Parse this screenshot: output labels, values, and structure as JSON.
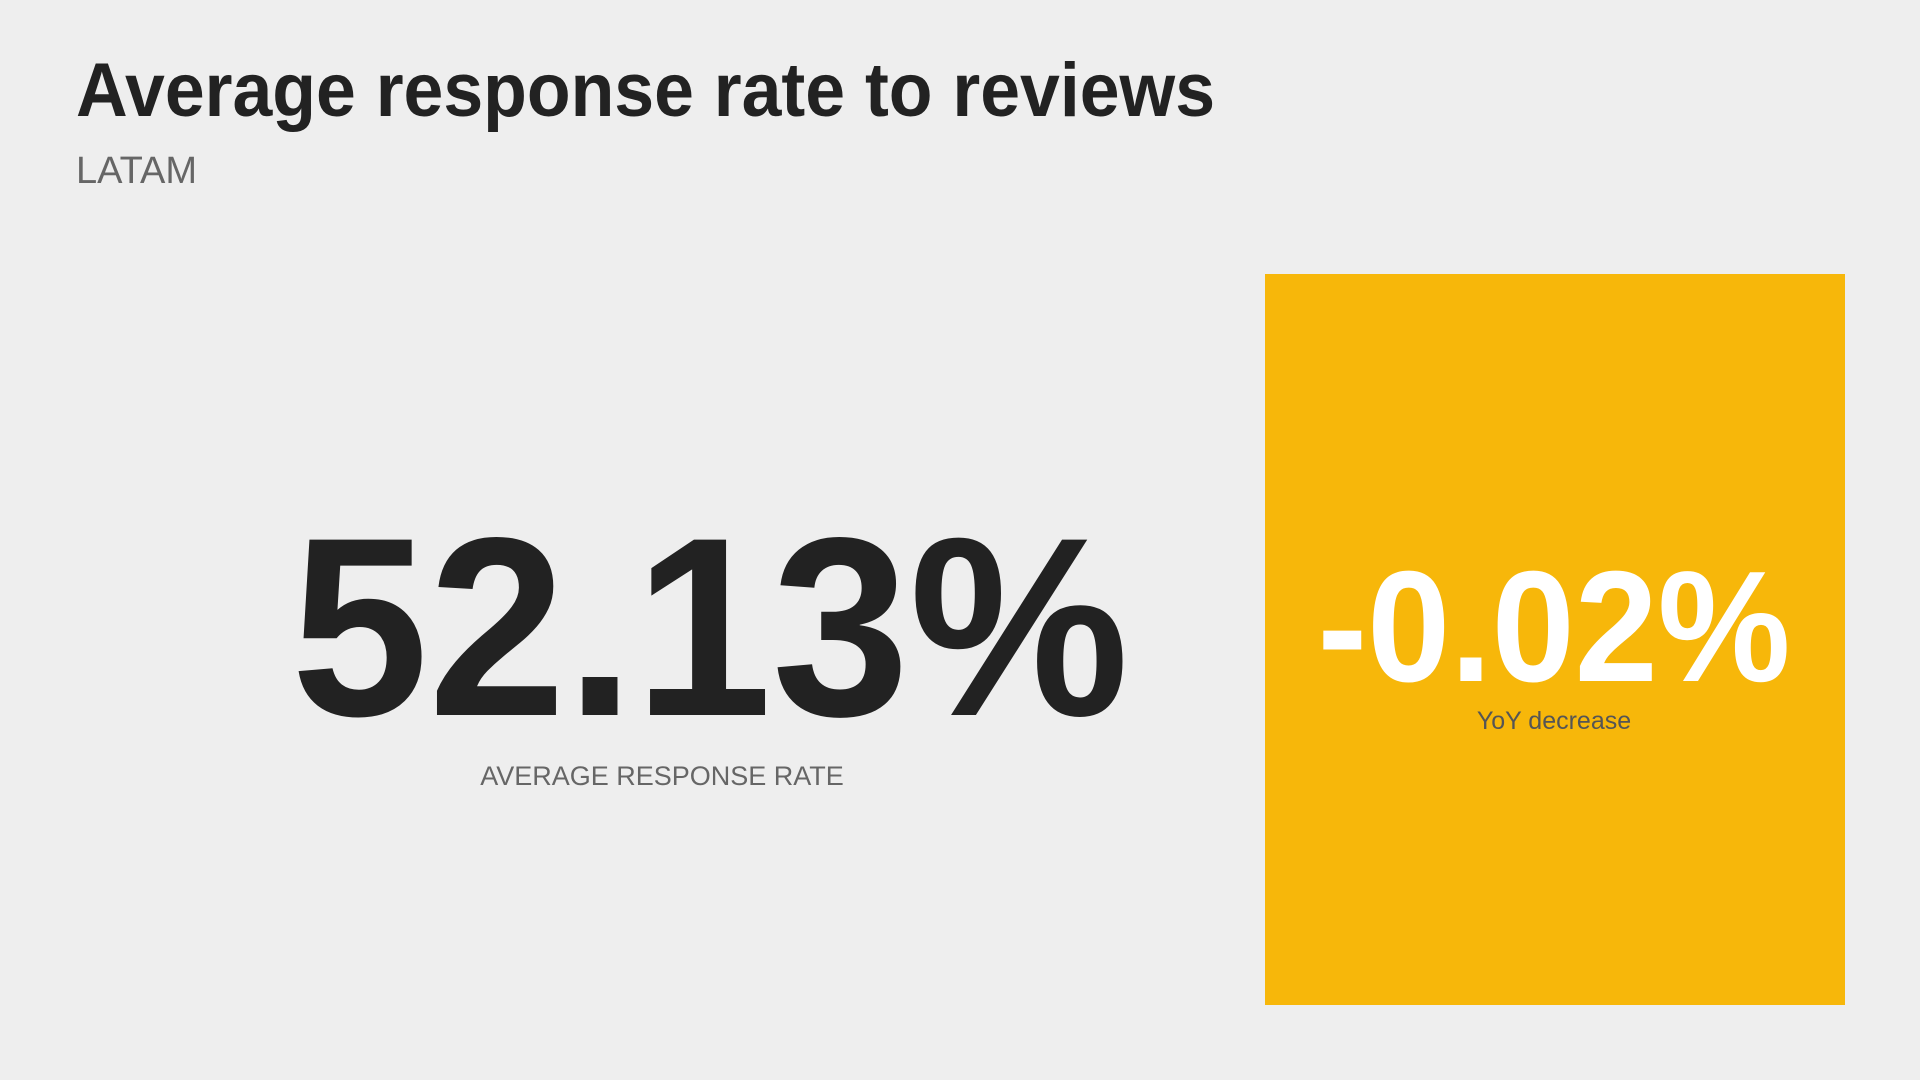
{
  "header": {
    "title": "Average response rate to reviews",
    "subtitle": "LATAM"
  },
  "kpi": {
    "value": "52.13%",
    "label": "AVERAGE RESPONSE RATE"
  },
  "change": {
    "value": "-0.02%",
    "label": "YoY decrease"
  }
}
